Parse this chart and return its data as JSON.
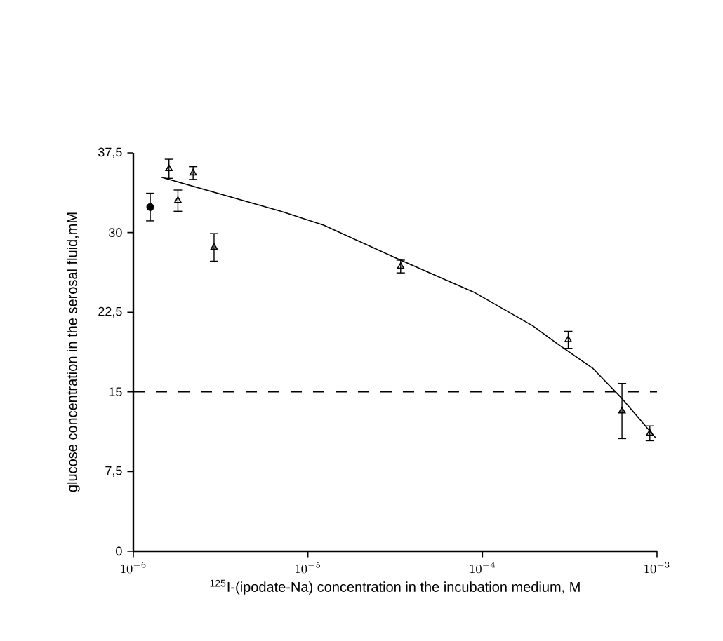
{
  "chart_data": {
    "type": "scatter",
    "xlabel": "$^{125}$I-(ipodate-Na) concentration in the incubation medium, M",
    "ylabel": "glucose concentration in the serosal fluid,mM",
    "log": "x",
    "xlim": [
      1e-06,
      0.001
    ],
    "ylim": [
      0,
      37.5
    ],
    "xticks": [
      {
        "value": 1e-06,
        "label": "10^{-6}"
      },
      {
        "value": 1e-05,
        "label": "10^{-5}"
      },
      {
        "value": 0.0001,
        "label": "10^{-4}"
      },
      {
        "value": 0.001,
        "label": "10^{-3}"
      }
    ],
    "yticks": [
      0,
      {
        "value": 7.5,
        "label": "7,5"
      },
      15,
      {
        "value": 22.5,
        "label": "22,5"
      },
      30,
      {
        "value": 37.5,
        "label": "37,5"
      }
    ],
    "grid": false,
    "series": [
      {
        "marker": "circle",
        "color": "#000000",
        "x": [
          1.25e-06
        ],
        "values": [
          32.4
        ],
        "errors": [
          1.3
        ]
      },
      {
        "marker": "triangle",
        "color": "#000000",
        "x": [
          1.6e-06,
          1.8e-06,
          2.2e-06,
          2.9e-06,
          3.4e-05,
          0.00031,
          0.00063,
          0.00091
        ],
        "values": [
          36.0,
          33.0,
          35.6,
          28.6,
          26.8,
          19.9,
          13.2,
          11.1
        ],
        "errors": [
          0.9,
          1.0,
          0.6,
          1.3,
          0.6,
          0.8,
          2.6,
          0.7
        ]
      },
      {
        "type": "line",
        "marker": "none",
        "line_style": "solid",
        "color": "#000000",
        "x": [
          1.45e-06,
          7e-06,
          1.23e-05,
          3.4e-05,
          8.9e-05,
          0.000195,
          0.00027,
          0.00043,
          0.00062,
          0.00098
        ],
        "values": [
          35.2,
          32.0,
          30.7,
          27.4,
          24.4,
          21.2,
          19.5,
          17.2,
          14.5,
          10.7
        ]
      }
    ],
    "ref_lines": [
      {
        "axis": "y",
        "value": 15,
        "line_style": "dashed",
        "color": "#000000"
      }
    ]
  }
}
